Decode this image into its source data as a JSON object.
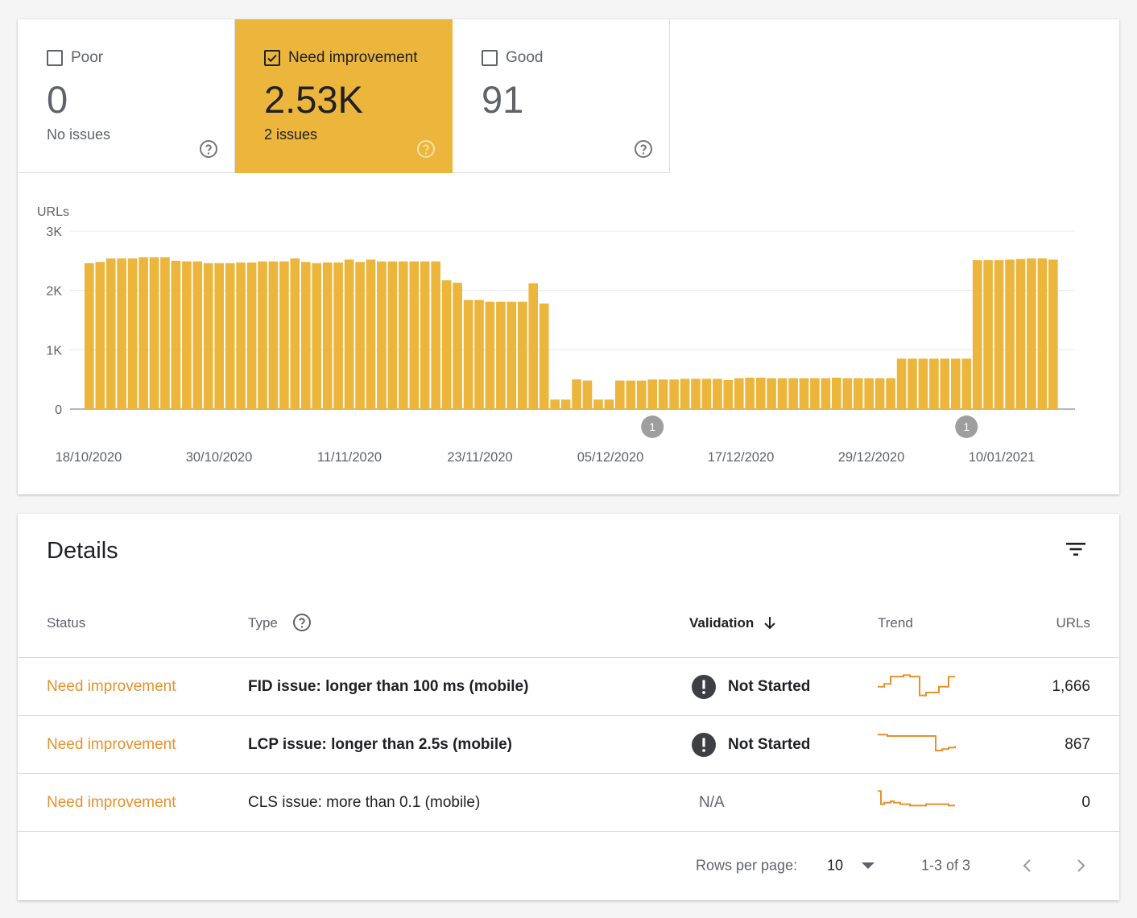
{
  "summary": {
    "tiles": [
      {
        "label": "Poor",
        "value": "0",
        "sub": "No issues",
        "checked": false
      },
      {
        "label": "Need improvement",
        "value": "2.53K",
        "sub": "2 issues",
        "checked": true
      },
      {
        "label": "Good",
        "value": "91",
        "sub": "",
        "checked": false
      }
    ]
  },
  "chart_data": {
    "type": "bar",
    "ylabel": "URLs",
    "ylim": [
      0,
      3000
    ],
    "yticks": [
      "3K",
      "2K",
      "1K",
      "0"
    ],
    "xticks": [
      "18/10/2020",
      "30/10/2020",
      "11/11/2020",
      "23/11/2020",
      "05/12/2020",
      "17/12/2020",
      "29/12/2020",
      "10/01/2021"
    ],
    "annotations": [
      {
        "label": "1",
        "after_bar": 52
      },
      {
        "label": "1",
        "after_bar": 81
      }
    ],
    "color": "#ecb53c",
    "values": [
      2460,
      2480,
      2540,
      2540,
      2540,
      2560,
      2560,
      2560,
      2500,
      2490,
      2490,
      2460,
      2460,
      2460,
      2470,
      2470,
      2490,
      2490,
      2490,
      2540,
      2480,
      2460,
      2470,
      2470,
      2520,
      2480,
      2520,
      2490,
      2490,
      2490,
      2490,
      2490,
      2490,
      2170,
      2130,
      1840,
      1840,
      1810,
      1810,
      1810,
      1810,
      2120,
      1780,
      160,
      160,
      500,
      480,
      160,
      160,
      480,
      480,
      480,
      500,
      500,
      500,
      510,
      510,
      510,
      510,
      490,
      520,
      530,
      530,
      520,
      520,
      520,
      520,
      520,
      520,
      530,
      520,
      520,
      520,
      520,
      520,
      850,
      850,
      850,
      850,
      850,
      850,
      850,
      2510,
      2510,
      2510,
      2520,
      2530,
      2540,
      2540,
      2520
    ]
  },
  "details": {
    "title": "Details",
    "filter_icon": "filter-icon",
    "columns": {
      "status": "Status",
      "type": "Type",
      "validation": "Validation",
      "trend": "Trend",
      "urls": "URLs"
    },
    "rows": [
      {
        "status": "Need improvement",
        "type": "FID issue: longer than 100 ms (mobile)",
        "validation": "Not Started",
        "urls": "1,666",
        "trend": [
          0.55,
          0.55,
          0.45,
          0.45,
          0.2,
          0.2,
          0.2,
          0.2,
          0.15,
          0.15,
          0.2,
          0.2,
          0.2,
          0.85,
          0.85,
          0.75,
          0.75,
          0.75,
          0.75,
          0.55,
          0.55,
          0.55,
          0.2,
          0.2,
          0.2
        ]
      },
      {
        "status": "Need improvement",
        "type": "LCP issue: longer than 2.5s (mobile)",
        "validation": "Not Started",
        "urls": "867",
        "trend": [
          0.2,
          0.2,
          0.2,
          0.25,
          0.25,
          0.25,
          0.25,
          0.25,
          0.25,
          0.25,
          0.25,
          0.25,
          0.25,
          0.25,
          0.25,
          0.25,
          0.25,
          0.25,
          0.75,
          0.75,
          0.7,
          0.7,
          0.65,
          0.65,
          0.6
        ]
      },
      {
        "status": "Need improvement",
        "type": "CLS issue: more than 0.1 (mobile)",
        "validation": "N/A",
        "urls": "0",
        "trend": [
          0.15,
          0.6,
          0.55,
          0.55,
          0.5,
          0.55,
          0.55,
          0.6,
          0.6,
          0.6,
          0.65,
          0.65,
          0.65,
          0.65,
          0.65,
          0.6,
          0.6,
          0.6,
          0.6,
          0.6,
          0.6,
          0.6,
          0.65,
          0.65,
          0.65
        ]
      }
    ],
    "pager": {
      "rows_label": "Rows per page:",
      "rows_value": "10",
      "range": "1-3 of 3"
    }
  }
}
